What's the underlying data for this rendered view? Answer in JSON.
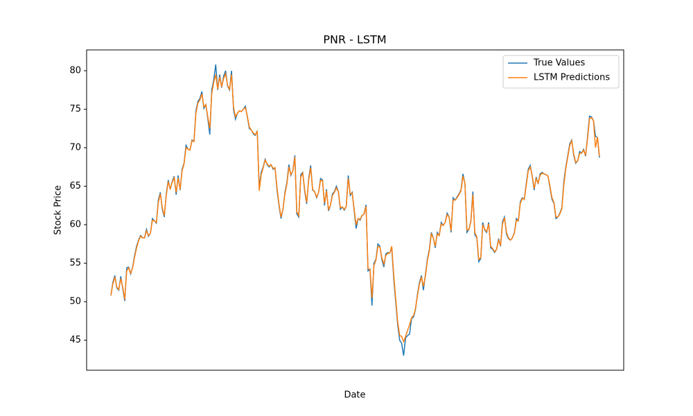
{
  "chart_data": {
    "type": "line",
    "title": "PNR - LSTM",
    "xlabel": "Date",
    "ylabel": "Stock Price",
    "ylim": [
      41.1,
      82.7
    ],
    "yticks": [
      45,
      50,
      55,
      60,
      65,
      70,
      75,
      80
    ],
    "legend": "upper right",
    "series": [
      {
        "name": "True Values",
        "color": "#1f77b4",
        "values": [
          50.8,
          52.5,
          53.4,
          51.8,
          51.5,
          53.3,
          51.7,
          50.1,
          54.4,
          54.5,
          53.6,
          54.5,
          56.0,
          57.2,
          58.0,
          58.6,
          58.3,
          58.3,
          59.4,
          58.5,
          58.9,
          60.8,
          60.5,
          60.2,
          63.2,
          64.2,
          62.0,
          61.0,
          64.0,
          65.8,
          64.6,
          65.6,
          66.3,
          63.9,
          66.4,
          64.5,
          67.2,
          68.0,
          70.3,
          69.8,
          69.7,
          71.0,
          70.8,
          74.8,
          76.0,
          76.4,
          77.3,
          75.1,
          75.6,
          73.8,
          71.7,
          77.5,
          78.8,
          80.8,
          77.5,
          79.5,
          77.8,
          79.3,
          80.0,
          78.0,
          77.5,
          80.0,
          75.0,
          73.7,
          74.5,
          74.8,
          74.7,
          75.0,
          75.4,
          74.0,
          72.5,
          72.3,
          71.8,
          71.6,
          72.2,
          64.8,
          66.8,
          67.5,
          68.5,
          67.8,
          67.5,
          67.8,
          67.2,
          67.4,
          64.5,
          62.5,
          60.8,
          62.0,
          64.2,
          65.5,
          67.8,
          66.4,
          67.0,
          69.0,
          61.4,
          61.0,
          66.5,
          66.8,
          64.3,
          62.7,
          66.0,
          67.7,
          64.5,
          64.3,
          63.5,
          64.2,
          66.0,
          65.8,
          62.5,
          64.6,
          61.8,
          62.5,
          64.0,
          64.3,
          65.0,
          64.3,
          62.0,
          62.3,
          61.9,
          62.4,
          66.4,
          63.8,
          64.2,
          61.8,
          59.5,
          60.8,
          60.6,
          61.2,
          61.4,
          62.6,
          54.0,
          54.2,
          49.5,
          55.0,
          55.5,
          57.5,
          57.2,
          55.5,
          54.5,
          56.2,
          56.4,
          56.3,
          57.0,
          53.0,
          50.0,
          47.0,
          45.0,
          44.6,
          43.0,
          45.3,
          45.6,
          45.8,
          47.8,
          48.0,
          49.0,
          51.0,
          52.5,
          53.4,
          51.5,
          53.5,
          55.5,
          56.8,
          59.0,
          58.3,
          57.0,
          59.0,
          58.6,
          60.3,
          59.9,
          60.3,
          61.5,
          61.0,
          59.0,
          63.5,
          63.2,
          63.6,
          64.0,
          64.5,
          66.6,
          65.3,
          59.0,
          59.4,
          60.5,
          64.3,
          58.7,
          58.3,
          55.2,
          55.6,
          60.3,
          59.3,
          59.0,
          60.3,
          57.0,
          56.8,
          56.4,
          56.8,
          58.2,
          57.2,
          60.4,
          61.0,
          58.8,
          58.2,
          58.0,
          58.3,
          59.0,
          60.8,
          60.5,
          63.0,
          63.5,
          63.3,
          65.3,
          67.2,
          67.7,
          66.3,
          64.5,
          66.2,
          65.3,
          66.6,
          66.8,
          66.6,
          66.5,
          66.3,
          64.8,
          63.3,
          62.8,
          60.8,
          61.0,
          61.5,
          62.2,
          65.6,
          67.5,
          69.0,
          70.5,
          71.0,
          69.0,
          68.0,
          68.3,
          69.5,
          69.3,
          69.8,
          68.9,
          71.5,
          74.1,
          74.0,
          73.5,
          71.5,
          71.3,
          68.7
        ]
      },
      {
        "name": "LSTM Predictions",
        "color": "#ff7f0e",
        "values": [
          50.8,
          52.3,
          53.2,
          51.9,
          51.6,
          53.0,
          51.9,
          50.3,
          54.0,
          54.4,
          53.7,
          54.4,
          55.8,
          57.0,
          57.9,
          58.5,
          58.3,
          58.3,
          59.2,
          58.6,
          58.9,
          60.6,
          60.5,
          60.3,
          62.9,
          64.0,
          62.2,
          61.2,
          63.8,
          65.6,
          64.7,
          65.5,
          66.1,
          64.2,
          66.1,
          64.6,
          67.0,
          67.9,
          70.0,
          69.8,
          69.7,
          70.9,
          70.8,
          74.5,
          75.8,
          76.2,
          77.0,
          75.3,
          75.6,
          74.0,
          72.5,
          77.0,
          78.5,
          79.5,
          77.6,
          79.2,
          77.9,
          79.0,
          79.6,
          78.1,
          77.6,
          79.5,
          75.3,
          74.0,
          74.5,
          74.8,
          74.7,
          75.0,
          75.2,
          74.1,
          72.7,
          72.3,
          71.9,
          71.7,
          72.1,
          64.4,
          66.5,
          67.4,
          68.4,
          67.9,
          67.6,
          67.8,
          67.3,
          67.4,
          64.8,
          62.7,
          61.0,
          62.0,
          64.0,
          65.3,
          67.5,
          66.5,
          67.0,
          68.8,
          61.7,
          61.2,
          66.2,
          66.7,
          64.5,
          62.9,
          65.8,
          67.4,
          64.6,
          64.3,
          63.6,
          64.2,
          65.8,
          65.7,
          62.8,
          64.4,
          62.0,
          62.5,
          63.8,
          64.2,
          64.8,
          64.3,
          62.2,
          62.3,
          62.0,
          62.4,
          66.0,
          64.0,
          64.1,
          62.0,
          60.0,
          60.8,
          60.7,
          61.2,
          61.4,
          62.4,
          54.3,
          54.2,
          50.5,
          54.7,
          55.4,
          57.2,
          57.1,
          55.7,
          54.9,
          56.0,
          56.3,
          56.3,
          57.2,
          53.5,
          50.4,
          47.4,
          45.6,
          45.5,
          44.8,
          45.5,
          46.3,
          47.0,
          47.9,
          48.2,
          49.1,
          50.8,
          52.3,
          53.2,
          52.0,
          53.3,
          55.3,
          56.6,
          58.8,
          58.3,
          57.2,
          58.8,
          58.6,
          60.1,
          59.9,
          60.3,
          61.3,
          61.0,
          59.2,
          63.2,
          63.2,
          63.5,
          63.9,
          64.4,
          66.3,
          65.4,
          59.3,
          59.4,
          60.4,
          63.9,
          59.0,
          58.4,
          55.5,
          55.7,
          60.0,
          59.4,
          59.1,
          60.1,
          57.2,
          56.9,
          56.5,
          56.8,
          58.0,
          57.3,
          60.1,
          60.9,
          59.0,
          58.3,
          58.0,
          58.3,
          58.9,
          60.6,
          60.5,
          62.8,
          63.4,
          63.3,
          65.1,
          67.0,
          67.5,
          66.4,
          64.7,
          66.0,
          65.4,
          66.4,
          66.7,
          66.6,
          66.5,
          66.3,
          65.0,
          63.5,
          62.9,
          61.0,
          61.0,
          61.4,
          62.1,
          65.2,
          67.3,
          68.8,
          70.3,
          70.9,
          69.2,
          68.1,
          68.3,
          69.3,
          69.3,
          69.7,
          69.0,
          71.2,
          73.8,
          73.9,
          73.5,
          70.0,
          71.4,
          68.9
        ]
      }
    ]
  }
}
